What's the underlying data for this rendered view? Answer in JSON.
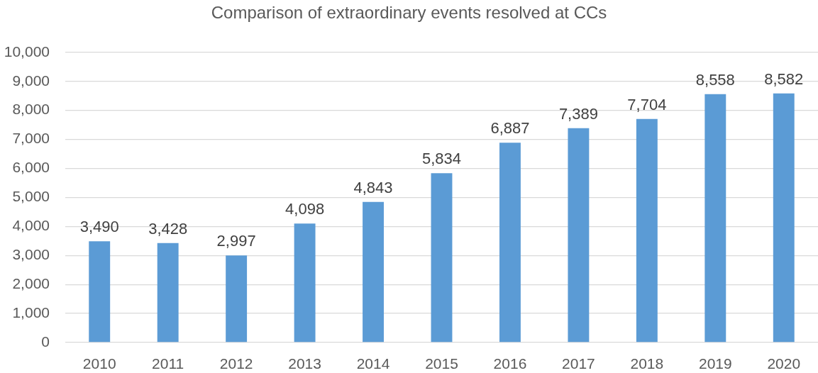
{
  "chart_data": {
    "type": "bar",
    "title": "Comparison of extraordinary events resolved at CCs",
    "categories": [
      "2010",
      "2011",
      "2012",
      "2013",
      "2014",
      "2015",
      "2016",
      "2017",
      "2018",
      "2019",
      "2020"
    ],
    "values": [
      3490,
      3428,
      2997,
      4098,
      4843,
      5834,
      6887,
      7389,
      7704,
      8558,
      8582
    ],
    "value_labels": [
      "3,490",
      "3,428",
      "2,997",
      "4,098",
      "4,843",
      "5,834",
      "6,887",
      "7,389",
      "7,704",
      "8,558",
      "8,582"
    ],
    "color": "#5b9bd5",
    "ylim": [
      0,
      10000
    ],
    "yticks": [
      {
        "value": 0,
        "label": "0"
      },
      {
        "value": 1000,
        "label": "1,000"
      },
      {
        "value": 2000,
        "label": "2,000"
      },
      {
        "value": 3000,
        "label": "3,000"
      },
      {
        "value": 4000,
        "label": "4,000"
      },
      {
        "value": 5000,
        "label": "5,000"
      },
      {
        "value": 6000,
        "label": "6,000"
      },
      {
        "value": 7000,
        "label": "7,000"
      },
      {
        "value": 8000,
        "label": "8,000"
      },
      {
        "value": 9000,
        "label": "9,000"
      },
      {
        "value": 10000,
        "label": "10,000"
      }
    ],
    "grid": "y"
  }
}
